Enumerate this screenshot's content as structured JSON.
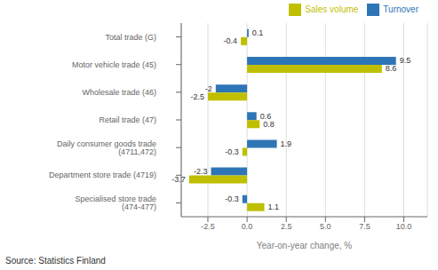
{
  "chart_data": {
    "type": "bar",
    "orientation": "horizontal",
    "categories": [
      "Specialised store trade (474-477)",
      "Department store trade (4719)",
      "Daily consumer goods trade (4711,472)",
      "Retail trade (47)",
      "Wholesale trade (46)",
      "Motor vehicle trade (45)",
      "Total trade (G)"
    ],
    "series": [
      {
        "name": "Turnover",
        "color": "#2E75B6",
        "values": [
          -0.3,
          -2.3,
          1.9,
          0.6,
          -2.0,
          9.5,
          0.1
        ]
      },
      {
        "name": "Sales volume",
        "color": "#BFBF00",
        "values": [
          1.1,
          -3.7,
          -0.3,
          0.8,
          -2.5,
          8.6,
          -0.4
        ]
      }
    ],
    "xlabel": "Year-on-year change, %",
    "annotations": [
      "Source: Statistics Finland"
    ],
    "xlim": [
      -4.2,
      11.5
    ],
    "xticks": [
      -2.5,
      {
        "value": 0,
        "label": "0.0"
      },
      2.5,
      {
        "value": 5,
        "label": "5.0"
      },
      {
        "value": 7.5,
        "label": "7.5"
      },
      {
        "value": 10,
        "label": "10.0"
      }
    ],
    "grid": true,
    "legend": "upper right",
    "data_labels": true
  }
}
